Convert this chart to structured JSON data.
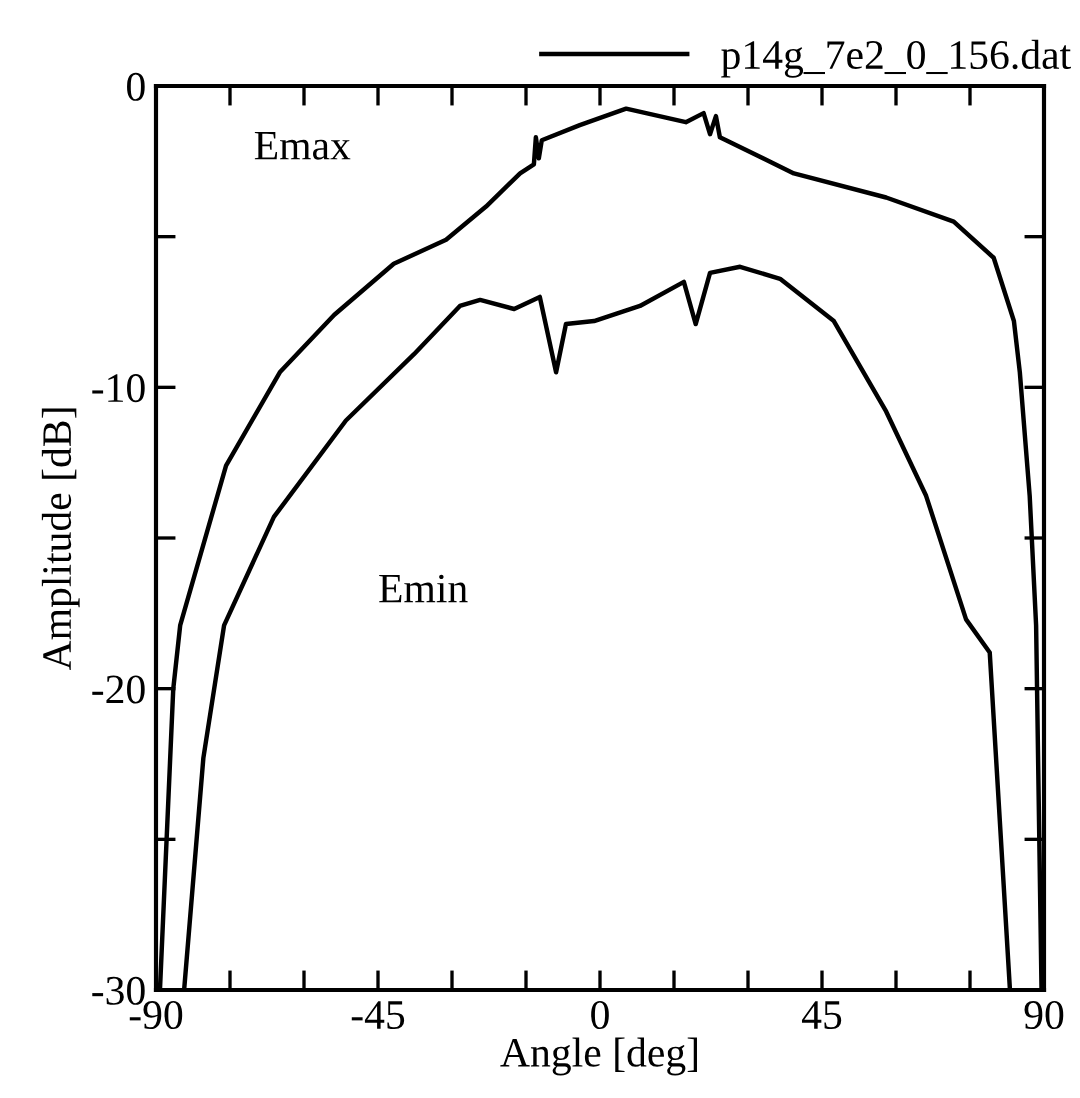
{
  "chart_data": {
    "type": "line",
    "xlabel": "Angle [deg]",
    "ylabel": "Amplitude [dB]",
    "xlim": [
      -90,
      90
    ],
    "ylim": [
      -30,
      0
    ],
    "xticks": [
      -90,
      {
        "value": -75,
        "label": null
      },
      {
        "value": -60,
        "label": null
      },
      -45,
      {
        "value": -30,
        "label": null
      },
      {
        "value": -15,
        "label": null
      },
      0,
      {
        "value": 15,
        "label": null
      },
      {
        "value": 30,
        "label": null
      },
      45,
      {
        "value": 60,
        "label": null
      },
      {
        "value": 75,
        "label": null
      },
      90
    ],
    "yticks": [
      -30,
      {
        "value": -25,
        "label": null
      },
      -20,
      {
        "value": -15,
        "label": null
      },
      -10,
      {
        "value": -5,
        "label": null
      },
      0
    ],
    "grid": false,
    "legend": "top right",
    "line_style": "solid",
    "series": [
      {
        "name": "p14g_7e2_0_156.dat",
        "color": "#000000",
        "x": [
          -89.2,
          -86.5,
          -85.1,
          -75.8,
          -64.9,
          -53.9,
          -41.8,
          -31.2,
          -23.1,
          -16.2,
          -13.4,
          -13,
          -12.4,
          -11.8,
          -4.1,
          5.3,
          17.4,
          21,
          22.3,
          23.5,
          24.3,
          39.3,
          58,
          71.7,
          79.8,
          83.9,
          85.1,
          87.1,
          88.4,
          89.5
        ],
        "values": [
          -30,
          -20,
          -17.9,
          -12.6,
          -9.5,
          -7.6,
          -5.9,
          -5.1,
          -4.0,
          -2.9,
          -2.6,
          -1.7,
          -2.4,
          -1.8,
          -1.3,
          -0.75,
          -1.2,
          -0.9,
          -1.6,
          -1.0,
          -1.7,
          -2.9,
          -3.7,
          -4.5,
          -5.7,
          -7.8,
          -9.5,
          -13.6,
          -17.9,
          -30
        ]
      },
      {
        "color": "#000000",
        "x": [
          -84.3,
          -80.4,
          -76.2,
          -66.1,
          -51.5,
          -37.7,
          -28.4,
          -24.3,
          -17.4,
          -12.2,
          -8.9,
          -6.9,
          -1.2,
          8.1,
          17,
          19.4,
          22.3,
          28.4,
          36.5,
          47.4,
          58,
          66.1,
          74.2,
          79,
          83.1
        ],
        "values": [
          -30,
          -22.3,
          -17.9,
          -14.3,
          -11.1,
          -8.9,
          -7.3,
          -7.1,
          -7.4,
          -7.0,
          -9.5,
          -7.9,
          -7.8,
          -7.3,
          -6.5,
          -7.9,
          -6.2,
          -6.0,
          -6.4,
          -7.8,
          -10.8,
          -13.6,
          -17.7,
          -18.8,
          -30
        ]
      }
    ],
    "annotations": [
      "Emax",
      "Emin"
    ]
  }
}
